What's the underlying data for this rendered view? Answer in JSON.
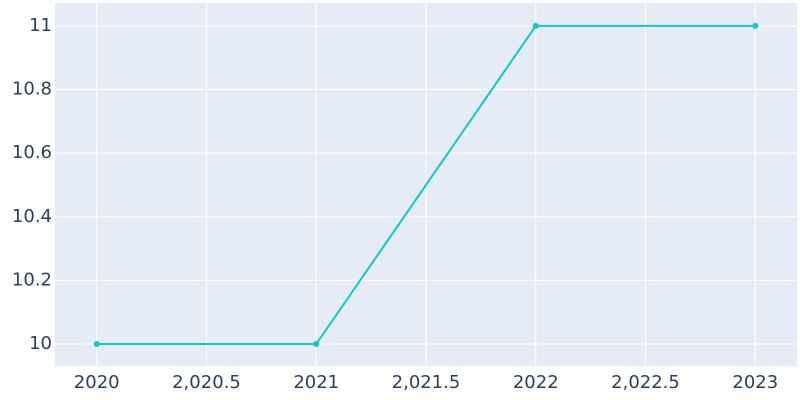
{
  "chart_data": {
    "type": "line",
    "x": [
      2020,
      2021,
      2022,
      2023
    ],
    "series": [
      {
        "color": "#12c8cc",
        "values": [
          10,
          10,
          11,
          11
        ]
      }
    ],
    "xlim": [
      2019.81,
      2023.19
    ],
    "xticks": [
      2020,
      {
        "value": 2020.5,
        "label": "2,020.5"
      },
      2021,
      {
        "value": 2021.5,
        "label": "2,021.5"
      },
      2022,
      {
        "value": 2022.5,
        "label": "2,022.5"
      },
      2023
    ],
    "ylim": [
      9.931,
      11.072
    ],
    "yticks": [
      10,
      10.2,
      10.4,
      10.6,
      10.8,
      11
    ],
    "grid": true,
    "background": "#e5ecf6"
  }
}
